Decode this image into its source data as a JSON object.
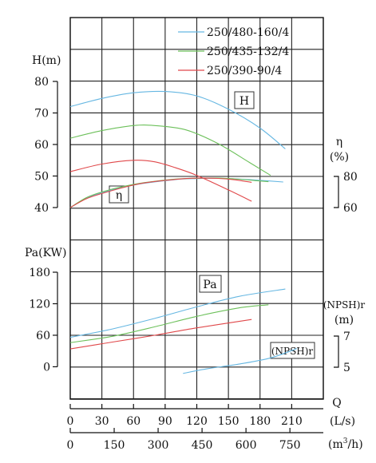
{
  "chart_data": {
    "type": "line",
    "legend": {
      "placement": "top-right",
      "entries": [
        {
          "name": "250/480-160/4",
          "color": "#66b7e2"
        },
        {
          "name": "250/435-132/4",
          "color": "#6cc05a"
        },
        {
          "name": "250/390-90/4",
          "color": "#e0484a"
        }
      ]
    },
    "axes": {
      "q_ls": {
        "label": "Q",
        "unit": "(L/s)",
        "ticks": [
          "0",
          "30",
          "60",
          "90",
          "120",
          "150",
          "180",
          "210"
        ],
        "range": [
          0,
          240
        ]
      },
      "q_m3h": {
        "unit_prefix": "(m",
        "unit_sup": "3",
        "unit_suffix": "/h)",
        "ticks": [
          "0",
          "150",
          "300",
          "450",
          "600",
          "750"
        ]
      },
      "head": {
        "label": "H(m)",
        "ticks": [
          "80",
          "70",
          "60",
          "50",
          "40"
        ]
      },
      "efficiency": {
        "label": "η",
        "unit": "(%)",
        "ticks": [
          "80",
          "60"
        ]
      },
      "power": {
        "label": "Pa(KW)",
        "ticks": [
          "180",
          "120",
          "60",
          "0"
        ]
      },
      "npsh": {
        "label": "(NPSH)r",
        "unit": "(m)",
        "ticks": [
          "7",
          "5"
        ]
      }
    },
    "curve_labels": {
      "head": "H",
      "efficiency": "η",
      "power": "Pa",
      "npsh": "(NPSH)r"
    },
    "series": [
      {
        "name": "250/480-160/4",
        "color": "#66b7e2",
        "head": [
          [
            0,
            72
          ],
          [
            30,
            74.6
          ],
          [
            60,
            76.4
          ],
          [
            90,
            76.8
          ],
          [
            120,
            75.4
          ],
          [
            150,
            71.2
          ],
          [
            180,
            65.2
          ],
          [
            204,
            58.6
          ]
        ],
        "efficiency": [
          [
            0,
            60
          ],
          [
            15,
            66
          ],
          [
            30,
            69.5
          ],
          [
            50,
            73
          ],
          [
            70,
            75.6
          ],
          [
            100,
            78
          ],
          [
            120,
            78.6
          ],
          [
            140,
            78.8
          ],
          [
            160,
            78.3
          ],
          [
            180,
            77.5
          ],
          [
            202,
            76.4
          ]
        ],
        "power": [
          [
            0,
            56
          ],
          [
            40,
            72
          ],
          [
            80,
            92
          ],
          [
            120,
            114
          ],
          [
            160,
            134
          ],
          [
            204,
            148
          ]
        ],
        "npsh": [
          [
            107,
            4.6
          ],
          [
            130,
            4.9
          ],
          [
            160,
            5.2
          ],
          [
            190,
            5.6
          ],
          [
            215,
            6.2
          ]
        ]
      },
      {
        "name": "250/435-132/4",
        "color": "#6cc05a",
        "head": [
          [
            0,
            62
          ],
          [
            30,
            64.4
          ],
          [
            60,
            66
          ],
          [
            80,
            66
          ],
          [
            110,
            64.6
          ],
          [
            140,
            60.3
          ],
          [
            170,
            54.3
          ],
          [
            190,
            50.2
          ]
        ],
        "efficiency": [
          [
            0,
            60
          ],
          [
            15,
            66.3
          ],
          [
            30,
            70
          ],
          [
            50,
            73.5
          ],
          [
            70,
            76
          ],
          [
            100,
            78.3
          ],
          [
            120,
            78.8
          ],
          [
            140,
            78.9
          ],
          [
            160,
            78.2
          ],
          [
            176,
            77.3
          ],
          [
            188,
            76.6
          ]
        ],
        "power": [
          [
            0,
            46
          ],
          [
            40,
            58
          ],
          [
            80,
            76
          ],
          [
            120,
            96
          ],
          [
            160,
            112
          ],
          [
            188,
            118
          ]
        ],
        "npsh": []
      },
      {
        "name": "250/390-90/4",
        "color": "#e0484a",
        "head": [
          [
            0,
            51.4
          ],
          [
            30,
            53.8
          ],
          [
            60,
            55
          ],
          [
            80,
            54.5
          ],
          [
            100,
            52.6
          ],
          [
            120,
            50.2
          ],
          [
            150,
            45.6
          ],
          [
            172,
            42
          ]
        ],
        "efficiency": [
          [
            0,
            60
          ],
          [
            15,
            65.6
          ],
          [
            30,
            69
          ],
          [
            50,
            72.8
          ],
          [
            70,
            75.8
          ],
          [
            100,
            78.1
          ],
          [
            120,
            78.9
          ],
          [
            140,
            78.7
          ],
          [
            155,
            77.9
          ],
          [
            168,
            76.6
          ],
          [
            172,
            76.2
          ]
        ],
        "power": [
          [
            0,
            34
          ],
          [
            40,
            47
          ],
          [
            80,
            60
          ],
          [
            120,
            74
          ],
          [
            172,
            90
          ]
        ],
        "npsh": []
      }
    ]
  }
}
